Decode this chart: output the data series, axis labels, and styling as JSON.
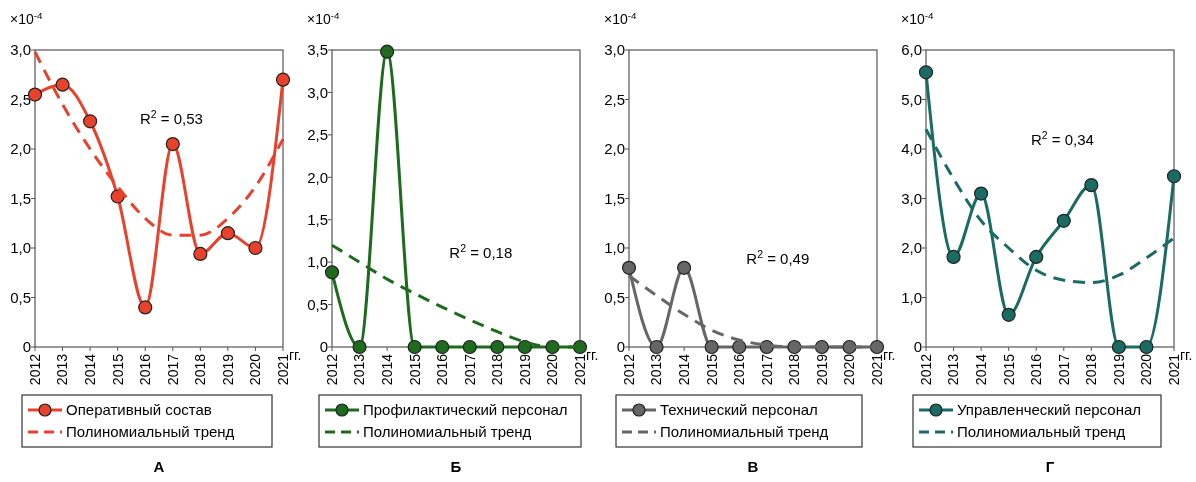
{
  "chart_data": [
    {
      "type": "line",
      "title": "А",
      "ylabel": "×10$^{-4}$",
      "xlabel": "гг.",
      "categories": [
        "2012",
        "2013",
        "2014",
        "2015",
        "2016",
        "2017",
        "2018",
        "2019",
        "2020",
        "2021"
      ],
      "ylim": [
        0,
        3.0
      ],
      "yticks": [
        {
          "value": 0,
          "label": "0"
        },
        {
          "value": 0.5,
          "label": "0,5"
        },
        {
          "value": 1.0,
          "label": "1,0"
        },
        {
          "value": 1.5,
          "label": "1,5"
        },
        {
          "value": 2.0,
          "label": "2,0"
        },
        {
          "value": 2.5,
          "label": "2,5"
        },
        {
          "value": 3.0,
          "label": "3,0"
        }
      ],
      "legend": "bottom",
      "grid": false,
      "annotations": [
        "R$^{2}$ = 0,53"
      ],
      "series": [
        {
          "name": "Оперативный состав",
          "color": "#e8412c",
          "marker": "circle",
          "line_style": "solid",
          "values": [
            2.55,
            2.65,
            2.28,
            1.52,
            0.4,
            2.05,
            0.94,
            1.15,
            1.0,
            2.7
          ]
        },
        {
          "name": "Полиномиальный тренд",
          "color": "#e8412c",
          "marker": "none",
          "line_style": "dashed",
          "values": [
            2.98,
            2.45,
            2.0,
            1.62,
            1.3,
            1.13,
            1.13,
            1.3,
            1.62,
            2.1
          ]
        }
      ]
    },
    {
      "type": "line",
      "title": "Б",
      "ylabel": "×10$^{-4}$",
      "xlabel": "гг.",
      "categories": [
        "2012",
        "2013",
        "2014",
        "2015",
        "2016",
        "2017",
        "2018",
        "2019",
        "2020",
        "2021"
      ],
      "ylim": [
        0,
        3.5
      ],
      "yticks": [
        {
          "value": 0,
          "label": "0"
        },
        {
          "value": 0.5,
          "label": "0,5"
        },
        {
          "value": 1.0,
          "label": "1,0"
        },
        {
          "value": 1.5,
          "label": "1,5"
        },
        {
          "value": 2.0,
          "label": "2,0"
        },
        {
          "value": 2.5,
          "label": "2,5"
        },
        {
          "value": 3.0,
          "label": "3,0"
        },
        {
          "value": 3.5,
          "label": "3,5"
        }
      ],
      "legend": "bottom",
      "grid": false,
      "annotations": [
        "R$^{2}$ = 0,18"
      ],
      "series": [
        {
          "name": "Профилактический персонал",
          "color": "#1e6b1e",
          "marker": "circle",
          "line_style": "solid",
          "values": [
            0.88,
            0,
            3.48,
            0,
            0,
            0,
            0,
            0,
            0,
            0
          ]
        },
        {
          "name": "Полиномиальный тренд",
          "color": "#1e6b1e",
          "marker": "none",
          "line_style": "dashed",
          "values": [
            1.2,
            1.0,
            0.8,
            0.63,
            0.47,
            0.32,
            0.18,
            0.06,
            0,
            0
          ]
        }
      ]
    },
    {
      "type": "line",
      "title": "В",
      "ylabel": "×10$^{-4}$",
      "xlabel": "гг.",
      "categories": [
        "2012",
        "2013",
        "2014",
        "2015",
        "2016",
        "2017",
        "2018",
        "2019",
        "2020",
        "2021"
      ],
      "ylim": [
        0,
        3.0
      ],
      "yticks": [
        {
          "value": 0,
          "label": "0"
        },
        {
          "value": 0.5,
          "label": "0,5"
        },
        {
          "value": 1.0,
          "label": "1,0"
        },
        {
          "value": 1.5,
          "label": "1,5"
        },
        {
          "value": 2.0,
          "label": "2,0"
        },
        {
          "value": 2.5,
          "label": "2,5"
        },
        {
          "value": 3.0,
          "label": "3,0"
        }
      ],
      "legend": "bottom",
      "grid": false,
      "annotations": [
        "R$^{2}$ = 0,49"
      ],
      "series": [
        {
          "name": "Технический персонал",
          "color": "#666666",
          "marker": "circle",
          "line_style": "solid",
          "values": [
            0.8,
            0,
            0.8,
            0,
            0,
            0,
            0,
            0,
            0,
            0
          ]
        },
        {
          "name": "Полиномиальный тренд",
          "color": "#666666",
          "marker": "none",
          "line_style": "dashed",
          "values": [
            0.72,
            0.52,
            0.33,
            0.17,
            0.07,
            0.02,
            0,
            0,
            0,
            0
          ]
        }
      ]
    },
    {
      "type": "line",
      "title": "Г",
      "ylabel": "×10$^{-4}$",
      "xlabel": "гг.",
      "categories": [
        "2012",
        "2013",
        "2014",
        "2015",
        "2016",
        "2017",
        "2018",
        "2019",
        "2020",
        "2021"
      ],
      "ylim": [
        0,
        6.0
      ],
      "yticks": [
        {
          "value": 0,
          "label": "0"
        },
        {
          "value": 1.0,
          "label": "1,0"
        },
        {
          "value": 2.0,
          "label": "2,0"
        },
        {
          "value": 3.0,
          "label": "3,0"
        },
        {
          "value": 4.0,
          "label": "4,0"
        },
        {
          "value": 5.0,
          "label": "5,0"
        },
        {
          "value": 6.0,
          "label": "6,0"
        }
      ],
      "legend": "bottom",
      "grid": false,
      "annotations": [
        "R$^{2}$ = 0,34"
      ],
      "series": [
        {
          "name": "Управленческий персонал",
          "color": "#1a6b64",
          "marker": "circle",
          "line_style": "solid",
          "values": [
            5.55,
            1.82,
            3.1,
            0.65,
            1.82,
            2.55,
            3.27,
            0,
            0,
            3.45
          ]
        },
        {
          "name": "Полиномиальный тренд",
          "color": "#1a6b64",
          "marker": "none",
          "line_style": "dashed",
          "values": [
            4.4,
            3.4,
            2.55,
            2.0,
            1.55,
            1.35,
            1.3,
            1.45,
            1.8,
            2.2
          ]
        }
      ]
    }
  ]
}
